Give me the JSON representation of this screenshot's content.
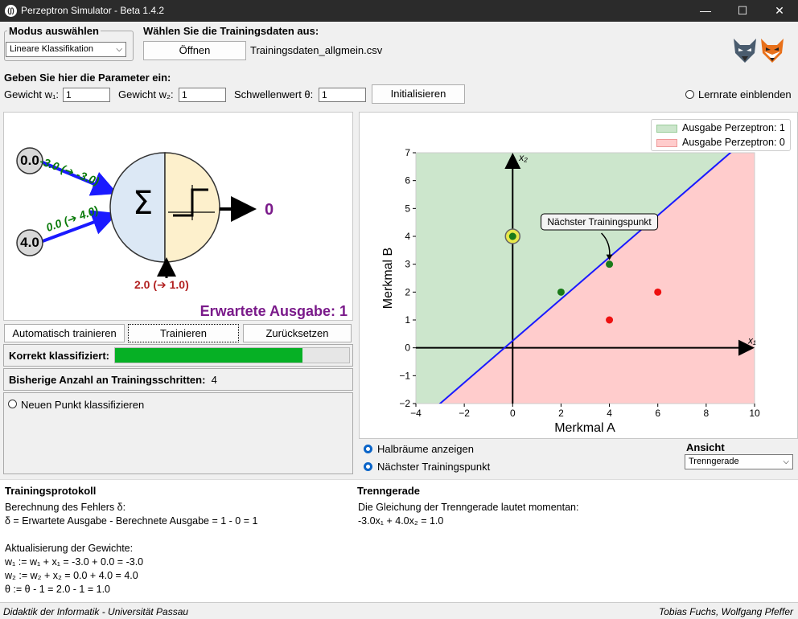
{
  "window": {
    "title": "Perzeptron Simulator - Beta 1.4.2",
    "icon_text": "(∫)",
    "min": "—",
    "max": "☐",
    "close": "✕"
  },
  "mode": {
    "label": "Modus auswählen",
    "selected": "Lineare Klassifikation"
  },
  "training_data": {
    "label": "Wählen Sie die Trainingsdaten aus:",
    "open_button": "Öffnen",
    "filename": "Trainingsdaten_allgmein.csv"
  },
  "params": {
    "label": "Geben Sie hier die Parameter ein:",
    "w1_label": "Gewicht w₁:",
    "w1_value": "1",
    "w2_label": "Gewicht w₂:",
    "w2_value": "1",
    "theta_label": "Schwellenwert θ:",
    "theta_value": "1",
    "init_button": "Initialisieren",
    "learnrate_label": "Lernrate einblenden"
  },
  "neuron": {
    "x1": "0.0",
    "x2": "4.0",
    "w1_text": "-3.0 (➔ -3.0)",
    "w2_text": "0.0 (➔ 4.0)",
    "theta_text": "2.0 (➔ 1.0)",
    "sum_symbol": "Σ",
    "output": "0",
    "expected": "Erwartete Ausgabe: 1"
  },
  "controls": {
    "auto_train": "Automatisch trainieren",
    "train": "Trainieren",
    "reset": "Zurücksetzen",
    "correct_label": "Korrekt klassifiziert:",
    "correct_fraction": 0.8,
    "steps_label": "Bisherige Anzahl an Trainingsschritten:",
    "steps_value": "4",
    "classify_label": "Neuen Punkt klassifizieren"
  },
  "chart_options": {
    "halfspaces": "Halbräume anzeigen",
    "next_point": "Nächster Trainingspunkt",
    "view_label": "Ansicht",
    "view_selected": "Trenngerade"
  },
  "log": {
    "title": "Trainingsprotokoll",
    "line1": "Berechnung des Fehlers δ:",
    "line2": "δ = Erwartete Ausgabe - Berechnete Ausgabe = 1 - 0 = 1",
    "line3": "Aktualisierung der Gewichte:",
    "line4": "w₁ := w₁ + x₁ = -3.0 + 0.0 = -3.0",
    "line5": "w₂ := w₂ + x₂ = 0.0 + 4.0 = 4.0",
    "line6": "θ := θ - 1 = 2.0 - 1 = 1.0"
  },
  "separator": {
    "title": "Trenngerade",
    "line1": "Die Gleichung der Trenngerade lautet momentan:",
    "line2": "-3.0x₁ + 4.0x₂  = 1.0"
  },
  "footer": {
    "left": "Didaktik der Informatik - Universität Passau",
    "right": "Tobias Fuchs, Wolfgang Pfeffer"
  },
  "colors": {
    "green_region": "#cce6cc",
    "red_region": "#ffcccc",
    "line": "#1a1aff",
    "progress": "#06b025",
    "expected": "#7a1a8a",
    "theta": "#b22222",
    "weights": "#0a7a0a"
  },
  "chart_data": {
    "type": "scatter",
    "xlabel": "Merkmal A",
    "ylabel": "Merkmal B",
    "xlim": [
      -4,
      10
    ],
    "ylim": [
      -2,
      7
    ],
    "x_ticks": [
      -4,
      -2,
      0,
      2,
      4,
      6,
      8,
      10
    ],
    "x_tick_labels": [
      "−4",
      "−2",
      "0",
      "2",
      "4",
      "6",
      "8",
      "10"
    ],
    "y_ticks": [
      -2,
      -1,
      0,
      1,
      2,
      3,
      4,
      5,
      6,
      7
    ],
    "y_tick_labels": [
      "−2",
      "−1",
      "0",
      "1",
      "2",
      "3",
      "4",
      "5",
      "6",
      "7"
    ],
    "axis_label_x1": "x₁",
    "axis_label_x2": "x₂",
    "points": [
      {
        "x": 0,
        "y": 4,
        "class": 1,
        "highlight": true
      },
      {
        "x": 2,
        "y": 2,
        "class": 1
      },
      {
        "x": 4,
        "y": 3,
        "class": 1
      },
      {
        "x": 4,
        "y": 1,
        "class": 0
      },
      {
        "x": 6,
        "y": 2,
        "class": 0
      }
    ],
    "boundary": {
      "w1": -3.0,
      "w2": 4.0,
      "theta": 1.0
    },
    "legend": [
      {
        "label": "Ausgabe Perzeptron: 1",
        "color": "#cce6cc"
      },
      {
        "label": "Ausgabe Perzeptron: 0",
        "color": "#ffcccc"
      }
    ],
    "legend_position": "top-right",
    "annotation": {
      "text": "Nächster Trainingspunkt",
      "x": 4,
      "y": 3
    },
    "grid": false
  }
}
